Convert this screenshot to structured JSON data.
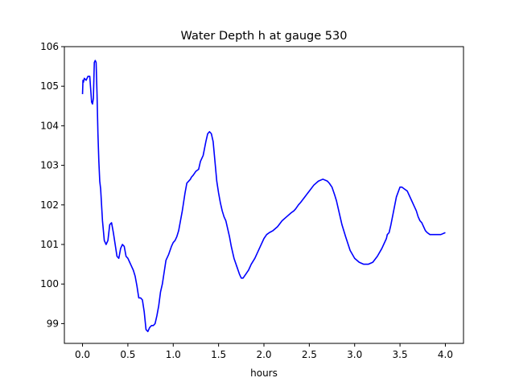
{
  "chart_data": {
    "type": "line",
    "title": "Water Depth h at gauge 530",
    "xlabel": "hours",
    "ylabel": "",
    "xlim": [
      -0.2,
      4.2
    ],
    "ylim": [
      98.5,
      106
    ],
    "xticks": [
      0.0,
      0.5,
      1.0,
      1.5,
      2.0,
      2.5,
      3.0,
      3.5,
      4.0
    ],
    "xtick_labels": [
      "0.0",
      "0.5",
      "1.0",
      "1.5",
      "2.0",
      "2.5",
      "3.0",
      "3.5",
      "4.0"
    ],
    "yticks": [
      99,
      100,
      101,
      102,
      103,
      104,
      105,
      106
    ],
    "ytick_labels": [
      "99",
      "100",
      "101",
      "102",
      "103",
      "104",
      "105",
      "106"
    ],
    "grid": false,
    "series": [
      {
        "color": "#0000ff",
        "x": [
          0.0,
          0.005,
          0.01,
          0.02,
          0.04,
          0.06,
          0.08,
          0.1,
          0.11,
          0.12,
          0.13,
          0.14,
          0.15,
          0.16,
          0.17,
          0.18,
          0.19,
          0.2,
          0.22,
          0.24,
          0.26,
          0.28,
          0.3,
          0.32,
          0.34,
          0.36,
          0.38,
          0.4,
          0.42,
          0.44,
          0.46,
          0.48,
          0.5,
          0.52,
          0.54,
          0.56,
          0.58,
          0.6,
          0.62,
          0.64,
          0.66,
          0.68,
          0.7,
          0.72,
          0.74,
          0.76,
          0.78,
          0.8,
          0.82,
          0.84,
          0.86,
          0.88,
          0.9,
          0.92,
          0.95,
          0.98,
          1.0,
          1.02,
          1.04,
          1.06,
          1.08,
          1.1,
          1.13,
          1.15,
          1.17,
          1.19,
          1.2,
          1.22,
          1.25,
          1.28,
          1.3,
          1.33,
          1.36,
          1.38,
          1.4,
          1.42,
          1.44,
          1.46,
          1.48,
          1.5,
          1.52,
          1.54,
          1.56,
          1.58,
          1.6,
          1.62,
          1.64,
          1.67,
          1.7,
          1.73,
          1.75,
          1.77,
          1.8,
          1.83,
          1.86,
          1.9,
          1.93,
          1.96,
          2.0,
          2.03,
          2.06,
          2.1,
          2.15,
          2.2,
          2.25,
          2.3,
          2.33,
          2.35,
          2.38,
          2.4,
          2.45,
          2.5,
          2.55,
          2.6,
          2.65,
          2.7,
          2.72,
          2.75,
          2.78,
          2.8,
          2.83,
          2.86,
          2.9,
          2.95,
          3.0,
          3.05,
          3.1,
          3.15,
          3.2,
          3.25,
          3.3,
          3.35,
          3.36,
          3.38,
          3.4,
          3.43,
          3.46,
          3.5,
          3.52,
          3.55,
          3.58,
          3.6,
          3.63,
          3.65,
          3.68,
          3.7,
          3.72,
          3.74,
          3.75,
          3.76,
          3.78,
          3.8,
          3.83,
          3.86,
          3.9,
          3.95,
          4.0
        ],
        "y": [
          104.8,
          105.15,
          105.1,
          105.2,
          105.15,
          105.25,
          105.25,
          104.6,
          104.55,
          104.7,
          105.6,
          105.65,
          105.6,
          104.8,
          103.8,
          103.1,
          102.6,
          102.4,
          101.6,
          101.1,
          101.0,
          101.1,
          101.5,
          101.55,
          101.3,
          101.0,
          100.7,
          100.65,
          100.9,
          101.0,
          100.95,
          100.7,
          100.65,
          100.55,
          100.45,
          100.35,
          100.2,
          99.95,
          99.65,
          99.65,
          99.6,
          99.3,
          98.85,
          98.8,
          98.9,
          98.95,
          98.95,
          99.0,
          99.2,
          99.45,
          99.8,
          100.0,
          100.3,
          100.6,
          100.75,
          100.95,
          101.05,
          101.1,
          101.2,
          101.35,
          101.6,
          101.85,
          102.3,
          102.55,
          102.6,
          102.65,
          102.7,
          102.75,
          102.85,
          102.9,
          103.1,
          103.25,
          103.6,
          103.8,
          103.85,
          103.8,
          103.6,
          103.1,
          102.6,
          102.3,
          102.05,
          101.85,
          101.7,
          101.6,
          101.4,
          101.2,
          100.95,
          100.65,
          100.45,
          100.25,
          100.15,
          100.15,
          100.25,
          100.35,
          100.5,
          100.65,
          100.8,
          100.95,
          101.15,
          101.25,
          101.3,
          101.35,
          101.45,
          101.6,
          101.7,
          101.8,
          101.85,
          101.9,
          102.0,
          102.05,
          102.2,
          102.35,
          102.5,
          102.6,
          102.65,
          102.6,
          102.55,
          102.45,
          102.25,
          102.1,
          101.8,
          101.5,
          101.2,
          100.85,
          100.65,
          100.55,
          100.5,
          100.5,
          100.55,
          100.7,
          100.9,
          101.15,
          101.25,
          101.3,
          101.5,
          101.85,
          102.2,
          102.45,
          102.45,
          102.4,
          102.35,
          102.25,
          102.1,
          102.0,
          101.85,
          101.7,
          101.6,
          101.55,
          101.5,
          101.45,
          101.35,
          101.3,
          101.25,
          101.25,
          101.25,
          101.25,
          101.3
        ]
      }
    ]
  }
}
